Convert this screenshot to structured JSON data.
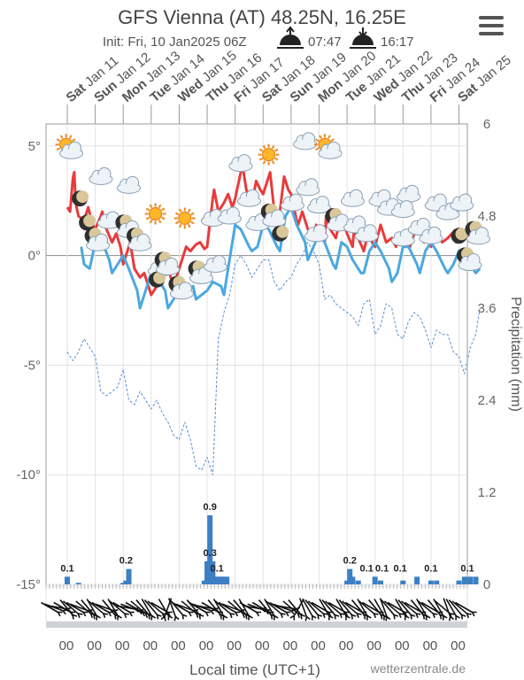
{
  "menu_icon": "hamburger-menu-icon",
  "chart_data": {
    "type": "line",
    "title": "GFS Vienna (AT) 48.25N, 16.25E",
    "subtitle": {
      "init_label": "Init: Fri, 10 Jan2025 06Z",
      "sunrise_icon": "sunrise-icon",
      "sunrise": "07:47",
      "sunset_icon": "sunset-icon",
      "sunset": "16:17"
    },
    "xlabel": "Local time (UTC+1)",
    "ylabel_right": "Precipitation (mm)",
    "credit": "wetterzentrale.de",
    "day_labels": [
      {
        "dow": "Sat",
        "date": "Jan 11"
      },
      {
        "dow": "Sun",
        "date": "Jan 12"
      },
      {
        "dow": "Mon",
        "date": "Jan 13"
      },
      {
        "dow": "Tue",
        "date": "Jan 14"
      },
      {
        "dow": "Wed",
        "date": "Jan 15"
      },
      {
        "dow": "Thu",
        "date": "Jan 16"
      },
      {
        "dow": "Fri",
        "date": "Jan 17"
      },
      {
        "dow": "Sat",
        "date": "Jan 18"
      },
      {
        "dow": "Sun",
        "date": "Jan 19"
      },
      {
        "dow": "Mon",
        "date": "Jan 20"
      },
      {
        "dow": "Tue",
        "date": "Jan 21"
      },
      {
        "dow": "Wed",
        "date": "Jan 22"
      },
      {
        "dow": "Thu",
        "date": "Jan 23"
      },
      {
        "dow": "Fri",
        "date": "Jan 24"
      },
      {
        "dow": "Sat",
        "date": "Jan 25"
      }
    ],
    "hour_tick_label": "00",
    "y_left": {
      "min": -15,
      "max": 6,
      "ticks": [
        {
          "v": 5,
          "label": "5°"
        },
        {
          "v": 0,
          "label": "0°"
        },
        {
          "v": -5,
          "label": "-5°"
        },
        {
          "v": -10,
          "label": "-10°"
        },
        {
          "v": -15,
          "label": "-15°"
        }
      ]
    },
    "y_right": {
      "min": 0,
      "max": 6,
      "ticks": [
        {
          "v": 6,
          "label": "6"
        },
        {
          "v": 4.8,
          "label": "4.8"
        },
        {
          "v": 3.6,
          "label": "3.6"
        },
        {
          "v": 2.4,
          "label": "2.4"
        },
        {
          "v": 1.2,
          "label": "1.2"
        },
        {
          "v": 0,
          "label": "0"
        }
      ]
    },
    "x_range_days": [
      0,
      15
    ],
    "colors": {
      "max_temp": "#e83a3a",
      "min_temp": "#4aa8e0",
      "dewpoint": "#5b8fd0",
      "precip": "#3d7fc4",
      "grid": "#e3e3e3",
      "axis": "#999999",
      "zero_line": "#999999"
    },
    "series": [
      {
        "name": "max_temp",
        "x": [
          0,
          0.1,
          0.2,
          0.25,
          0.3,
          0.4,
          0.6,
          0.75,
          0.9,
          1.0,
          1.2,
          1.25,
          1.4,
          1.6,
          1.75,
          1.9,
          2.0,
          2.2,
          2.25,
          2.4,
          2.6,
          2.75,
          2.9,
          3.0,
          3.2,
          3.25,
          3.4,
          3.6,
          3.75,
          3.9,
          4.0,
          4.2,
          4.25,
          4.4,
          4.6,
          4.75,
          4.9,
          5.0,
          5.2,
          5.25,
          5.4,
          5.6,
          5.75,
          5.9,
          6.0,
          6.2,
          6.25,
          6.4,
          6.6,
          6.75,
          6.9,
          7.0,
          7.2,
          7.25,
          7.4,
          7.6,
          7.75,
          7.9,
          8.0,
          8.2,
          8.25,
          8.4,
          8.6,
          8.75,
          8.9,
          9.0,
          9.2,
          9.25,
          9.4,
          9.6,
          9.75,
          9.9,
          10.0,
          10.2,
          10.25,
          10.4,
          10.6,
          10.75,
          10.9,
          11.0,
          11.2,
          11.25,
          11.4,
          11.6,
          11.75,
          11.9,
          12.0,
          12.2,
          12.25,
          12.4,
          12.6,
          12.75,
          12.9,
          13.0,
          13.2,
          13.25,
          13.4,
          13.6,
          13.75,
          13.9,
          14.0,
          14.2,
          14.25,
          14.4,
          14.6,
          14.75
        ],
        "y": [
          2.2,
          2.0,
          3.5,
          3.8,
          2.4,
          1.8,
          1.6,
          2.2,
          1.4,
          1.2,
          1.8,
          2.0,
          1.2,
          0.6,
          1.0,
          0.4,
          -0.4,
          0.4,
          0.6,
          -0.6,
          -1.0,
          -0.8,
          -1.4,
          -1.8,
          -1.4,
          -1.2,
          -1.0,
          -0.6,
          -1.2,
          -1.0,
          -0.6,
          0.2,
          0.4,
          0.2,
          0.5,
          0.6,
          0.3,
          0.4,
          2.6,
          3.0,
          2.0,
          2.4,
          2.8,
          2.2,
          2.6,
          3.8,
          4.2,
          3.0,
          2.4,
          3.4,
          3.0,
          2.8,
          3.6,
          3.8,
          2.0,
          2.0,
          3.6,
          3.0,
          2.8,
          1.6,
          1.4,
          2.0,
          1.2,
          0.8,
          1.4,
          1.0,
          0.6,
          1.8,
          1.2,
          0.8,
          1.6,
          1.4,
          1.0,
          0.4,
          1.2,
          0.8,
          0.2,
          1.0,
          0.6,
          0.4,
          1.4,
          1.2,
          0.6,
          0.8,
          0.4,
          1.0,
          0.6,
          0.8,
          0.4,
          1.0,
          1.2,
          0.6,
          0.8,
          0.4,
          1.2,
          1.0,
          0.6,
          0.8,
          1.0,
          0.6,
          0.8,
          1.0,
          0.8,
          1.0,
          1.2,
          1.0
        ]
      },
      {
        "name": "min_temp",
        "x": [
          0.5,
          0.6,
          0.8,
          1.0,
          1.2,
          1.5,
          1.6,
          1.8,
          2.0,
          2.2,
          2.5,
          2.6,
          2.8,
          3.0,
          3.2,
          3.5,
          3.6,
          3.8,
          4.0,
          4.2,
          4.5,
          4.6,
          4.8,
          5.0,
          5.2,
          5.5,
          5.6,
          5.8,
          6.0,
          6.2,
          6.5,
          6.6,
          6.8,
          7.0,
          7.2,
          7.5,
          7.6,
          7.8,
          8.0,
          8.2,
          8.5,
          8.6,
          8.8,
          9.0,
          9.2,
          9.5,
          9.6,
          9.8,
          10.0,
          10.2,
          10.5,
          10.6,
          10.8,
          11.0,
          11.2,
          11.5,
          11.6,
          11.8,
          12.0,
          12.2,
          12.5,
          12.6,
          12.8,
          13.0,
          13.2,
          13.5,
          13.6,
          13.8,
          14.0,
          14.2,
          14.5,
          14.6,
          14.75
        ],
        "y": [
          0.4,
          -0.4,
          -0.6,
          0.6,
          0.8,
          -0.2,
          -0.8,
          -0.4,
          0.0,
          -0.6,
          -1.6,
          -2.4,
          -1.6,
          -0.8,
          -1.0,
          -1.6,
          -2.4,
          -2.0,
          -1.6,
          -1.8,
          -1.4,
          -2.0,
          -1.8,
          -1.6,
          -1.2,
          -1.4,
          -1.8,
          -0.2,
          1.4,
          1.2,
          0.4,
          0.2,
          0.4,
          1.4,
          1.2,
          0.4,
          0.2,
          1.8,
          2.2,
          1.4,
          0.6,
          -0.2,
          0.4,
          1.0,
          0.6,
          -0.4,
          -0.6,
          0.6,
          0.4,
          -0.2,
          -0.8,
          -0.8,
          0.2,
          0.6,
          0.2,
          -0.6,
          -1.2,
          -0.8,
          0.4,
          0.4,
          -0.4,
          -0.8,
          0.2,
          0.6,
          0.2,
          -0.6,
          -0.8,
          -0.4,
          0.2,
          0.0,
          -0.6,
          -0.8,
          -0.6
        ]
      },
      {
        "name": "dewpoint",
        "x": [
          0,
          0.2,
          0.4,
          0.6,
          0.8,
          1.0,
          1.2,
          1.4,
          1.6,
          1.8,
          2.0,
          2.2,
          2.4,
          2.6,
          2.8,
          3.0,
          3.2,
          3.4,
          3.6,
          3.8,
          4.0,
          4.2,
          4.4,
          4.6,
          4.8,
          5.0,
          5.2,
          5.4,
          5.6,
          5.8,
          6.0,
          6.2,
          6.4,
          6.6,
          6.8,
          7.0,
          7.2,
          7.4,
          7.6,
          7.8,
          8.0,
          8.2,
          8.4,
          8.6,
          8.8,
          9.0,
          9.2,
          9.4,
          9.6,
          9.8,
          10.0,
          10.2,
          10.4,
          10.6,
          10.8,
          11.0,
          11.2,
          11.4,
          11.6,
          11.8,
          12.0,
          12.2,
          12.4,
          12.6,
          12.8,
          13.0,
          13.2,
          13.4,
          13.6,
          13.8,
          14.0,
          14.2,
          14.4,
          14.6,
          14.75
        ],
        "y": [
          -4.4,
          -4.8,
          -4.4,
          -3.8,
          -4.2,
          -4.6,
          -6.2,
          -6.4,
          -6.2,
          -6.0,
          -5.2,
          -6.6,
          -6.8,
          -6.2,
          -6.6,
          -7.0,
          -6.6,
          -7.2,
          -7.6,
          -8.2,
          -8.4,
          -7.6,
          -8.4,
          -9.6,
          -9.8,
          -9.2,
          -10.0,
          -3.8,
          -2.6,
          -1.8,
          -0.4,
          0.0,
          -0.4,
          -1.0,
          -0.6,
          -0.2,
          -0.2,
          -1.2,
          -1.6,
          -1.2,
          -1.0,
          -0.4,
          0.0,
          0.6,
          0.2,
          -0.4,
          -2.0,
          -1.8,
          -2.2,
          -2.4,
          -2.6,
          -2.8,
          -3.2,
          -2.2,
          -2.0,
          -3.6,
          -3.2,
          -2.2,
          -2.4,
          -3.6,
          -3.8,
          -3.0,
          -2.6,
          -2.8,
          -3.4,
          -4.2,
          -3.4,
          -3.6,
          -3.6,
          -4.4,
          -4.6,
          -5.4,
          -4.2,
          -3.6,
          -2.4
        ]
      }
    ],
    "precip_bars": {
      "x": [
        0.0,
        0.4,
        2.0,
        2.1,
        2.2,
        4.9,
        5.0,
        5.1,
        5.2,
        5.3,
        5.4,
        5.5,
        5.6,
        5.7,
        10.0,
        10.1,
        10.2,
        10.4,
        11.0,
        11.2,
        12.0,
        12.5,
        13.0,
        13.2,
        14.0,
        14.2,
        14.4,
        14.6
      ],
      "y": [
        0.1,
        0.02,
        0.02,
        0.05,
        0.2,
        0.05,
        0.3,
        0.9,
        0.3,
        0.1,
        0.1,
        0.1,
        0.1,
        0.1,
        0.05,
        0.2,
        0.1,
        0.05,
        0.1,
        0.05,
        0.05,
        0.1,
        0.05,
        0.05,
        0.05,
        0.1,
        0.1,
        0.1
      ]
    },
    "precip_labels": [
      {
        "x": 0.0,
        "y": 0.1,
        "label": "0.1"
      },
      {
        "x": 2.1,
        "y": 0.2,
        "label": "0.2"
      },
      {
        "x": 5.1,
        "y": 0.9,
        "label": "0.9"
      },
      {
        "x": 5.1,
        "y": 0.3,
        "label": "0.3"
      },
      {
        "x": 5.35,
        "y": 0.1,
        "label": "0.1"
      },
      {
        "x": 10.1,
        "y": 0.2,
        "label": "0.2"
      },
      {
        "x": 10.7,
        "y": 0.1,
        "label": "0.1"
      },
      {
        "x": 11.25,
        "y": 0.1,
        "label": "0.1"
      },
      {
        "x": 11.9,
        "y": 0.1,
        "label": "0.1"
      },
      {
        "x": 13.0,
        "y": 0.1,
        "label": "0.1"
      },
      {
        "x": 14.3,
        "y": 0.1,
        "label": "0.1"
      }
    ],
    "weather_icons": [
      {
        "x": 0.05,
        "y": 4.9,
        "icon": "sun-cloud-icon"
      },
      {
        "x": 1.2,
        "y": 3.6,
        "icon": "cloud-icon"
      },
      {
        "x": 2.2,
        "y": 3.2,
        "icon": "cloud-icon"
      },
      {
        "x": 0.45,
        "y": 2.6,
        "icon": "moon-icon"
      },
      {
        "x": 0.7,
        "y": 1.5,
        "icon": "moon-icon"
      },
      {
        "x": 1.0,
        "y": 0.7,
        "icon": "moon-cloud-icon"
      },
      {
        "x": 1.5,
        "y": 1.6,
        "icon": "cloud-icon"
      },
      {
        "x": 2.1,
        "y": 1.3,
        "icon": "moon-cloud-icon"
      },
      {
        "x": 2.5,
        "y": 0.7,
        "icon": "moon-cloud-icon"
      },
      {
        "x": 3.15,
        "y": 1.9,
        "icon": "sun-icon"
      },
      {
        "x": 4.2,
        "y": 1.7,
        "icon": "sun-icon"
      },
      {
        "x": 3.3,
        "y": -0.6,
        "icon": "cloud-icon"
      },
      {
        "x": 3.2,
        "y": -1.1,
        "icon": "moon-icon"
      },
      {
        "x": 3.5,
        "y": -0.4,
        "icon": "moon-cloud-icon"
      },
      {
        "x": 4.0,
        "y": -1.5,
        "icon": "moon-cloud-icon"
      },
      {
        "x": 4.7,
        "y": -0.8,
        "icon": "moon-cloud-icon"
      },
      {
        "x": 5.3,
        "y": -0.4,
        "icon": "cloud-icon"
      },
      {
        "x": 5.2,
        "y": 1.7,
        "icon": "cloud-icon"
      },
      {
        "x": 5.8,
        "y": 1.8,
        "icon": "cloud-icon"
      },
      {
        "x": 6.2,
        "y": 4.2,
        "icon": "cloud-icon"
      },
      {
        "x": 7.2,
        "y": 4.6,
        "icon": "sun-icon"
      },
      {
        "x": 6.5,
        "y": 2.6,
        "icon": "cloud-icon"
      },
      {
        "x": 6.8,
        "y": 1.5,
        "icon": "cloud-icon"
      },
      {
        "x": 7.3,
        "y": 1.8,
        "icon": "moon-cloud-icon"
      },
      {
        "x": 7.6,
        "y": 1.0,
        "icon": "moon-icon"
      },
      {
        "x": 8.05,
        "y": 2.4,
        "icon": "cloud-icon"
      },
      {
        "x": 8.5,
        "y": 5.2,
        "icon": "cloud-icon"
      },
      {
        "x": 9.3,
        "y": 4.9,
        "icon": "sun-cloud-icon"
      },
      {
        "x": 8.6,
        "y": 3.1,
        "icon": "cloud-icon"
      },
      {
        "x": 9.0,
        "y": 2.3,
        "icon": "cloud-icon"
      },
      {
        "x": 8.9,
        "y": 1.0,
        "icon": "cloud-icon"
      },
      {
        "x": 9.6,
        "y": 1.6,
        "icon": "moon-cloud-icon"
      },
      {
        "x": 10.2,
        "y": 2.6,
        "icon": "cloud-icon"
      },
      {
        "x": 10.3,
        "y": 1.4,
        "icon": "cloud-icon"
      },
      {
        "x": 10.7,
        "y": 1.0,
        "icon": "cloud-icon"
      },
      {
        "x": 11.2,
        "y": 2.6,
        "icon": "cloud-icon"
      },
      {
        "x": 11.5,
        "y": 2.2,
        "icon": "cloud-icon"
      },
      {
        "x": 12.2,
        "y": 2.8,
        "icon": "cloud-icon"
      },
      {
        "x": 12.0,
        "y": 2.1,
        "icon": "cloud-icon"
      },
      {
        "x": 12.0,
        "y": 0.8,
        "icon": "cloud-icon"
      },
      {
        "x": 12.6,
        "y": 1.3,
        "icon": "cloud-icon"
      },
      {
        "x": 13.0,
        "y": 0.9,
        "icon": "cloud-icon"
      },
      {
        "x": 13.2,
        "y": 2.4,
        "icon": "cloud-icon"
      },
      {
        "x": 13.6,
        "y": 2.0,
        "icon": "cloud-icon"
      },
      {
        "x": 14.1,
        "y": 2.4,
        "icon": "cloud-icon"
      },
      {
        "x": 14.0,
        "y": 0.9,
        "icon": "moon-icon"
      },
      {
        "x": 14.6,
        "y": 1.0,
        "icon": "moon-cloud-icon"
      },
      {
        "x": 14.3,
        "y": -0.2,
        "icon": "moon-cloud-icon"
      }
    ],
    "wind_dirs_deg": [
      300,
      290,
      280,
      300,
      320,
      310,
      300,
      290,
      310,
      320,
      330,
      310,
      300,
      290,
      320,
      330,
      310,
      300,
      280,
      290,
      300,
      310,
      320,
      330,
      320,
      310,
      300,
      330,
      20,
      340,
      320,
      300,
      290,
      310,
      320,
      300,
      290,
      280,
      300,
      320,
      330,
      310,
      300,
      290,
      310,
      320,
      330,
      300,
      280,
      290,
      300,
      320,
      330,
      310,
      300,
      290,
      280,
      310,
      320,
      30,
      340,
      330,
      320,
      310,
      300,
      330,
      320,
      310,
      300,
      330,
      320,
      310,
      300,
      320,
      330,
      310,
      300,
      320,
      330,
      340,
      320,
      310,
      300,
      330,
      320,
      310,
      300,
      320,
      330,
      310,
      300,
      320,
      330,
      310,
      340,
      330,
      320,
      310,
      300
    ],
    "grid": true,
    "legend": "none"
  }
}
